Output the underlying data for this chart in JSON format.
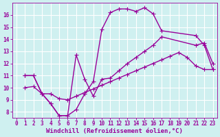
{
  "background_color": "#cff0f0",
  "grid_color": "#c8e8e8",
  "line_color": "#990099",
  "marker": "+",
  "markersize": 4,
  "linewidth": 1.0,
  "xlabel": "Windchill (Refroidissement éolien,°C)",
  "xlabel_fontsize": 6.5,
  "tick_fontsize": 5.5,
  "xlim": [
    -0.5,
    23.5
  ],
  "ylim": [
    7.5,
    17.0
  ],
  "yticks": [
    8,
    9,
    10,
    11,
    12,
    13,
    14,
    15,
    16
  ],
  "xticks": [
    0,
    1,
    2,
    3,
    4,
    5,
    6,
    7,
    8,
    9,
    10,
    11,
    12,
    13,
    14,
    15,
    16,
    17,
    18,
    19,
    20,
    21,
    22,
    23
  ],
  "line1_x": [
    1,
    2,
    3,
    4,
    5,
    6,
    7,
    8,
    9,
    10,
    11,
    12,
    13,
    14,
    15,
    16,
    17,
    21,
    22,
    23
  ],
  "line1_y": [
    11.0,
    11.0,
    9.5,
    8.7,
    7.7,
    7.7,
    8.2,
    9.5,
    10.5,
    14.8,
    16.2,
    16.5,
    16.5,
    16.3,
    16.6,
    16.1,
    14.7,
    14.3,
    13.5,
    11.5
  ],
  "line2_x": [
    1,
    2,
    3,
    4,
    5,
    6,
    7,
    8,
    9,
    10,
    11,
    12,
    13,
    14,
    15,
    16,
    17,
    21,
    22,
    23
  ],
  "line2_y": [
    11.0,
    11.0,
    9.5,
    8.7,
    7.7,
    7.7,
    12.7,
    10.7,
    9.3,
    10.7,
    10.8,
    11.4,
    12.0,
    12.5,
    13.0,
    13.5,
    14.2,
    13.5,
    13.7,
    12.0
  ],
  "line3_x": [
    1,
    2,
    3,
    4,
    5,
    6,
    7,
    8,
    9,
    10,
    11,
    12,
    13,
    14,
    15,
    16,
    17,
    18,
    19,
    20,
    21,
    22,
    23
  ],
  "line3_y": [
    10.0,
    10.1,
    9.5,
    9.5,
    9.1,
    9.0,
    9.3,
    9.6,
    9.9,
    10.2,
    10.5,
    10.8,
    11.1,
    11.4,
    11.7,
    12.0,
    12.3,
    12.6,
    12.9,
    12.5,
    11.8,
    11.5,
    11.5
  ]
}
